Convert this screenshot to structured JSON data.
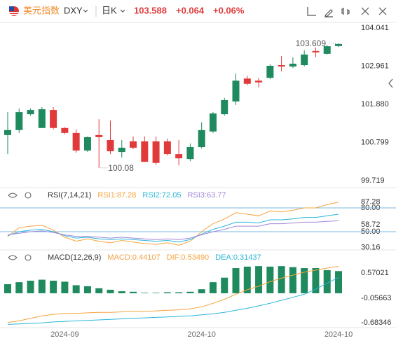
{
  "header": {
    "symbol_name": "美元指数",
    "symbol": "DXY",
    "period": "日K",
    "change": "+0.064",
    "change_pct": "+0.06%"
  },
  "chart_data": [
    {
      "type": "candlestick",
      "up_color": "#1e8a5e",
      "down_color": "#e03a3a",
      "show_extremes": true,
      "categories": [
        null,
        null,
        null,
        null,
        null,
        "2024-09",
        null,
        null,
        null,
        null,
        null,
        null,
        null,
        null,
        null,
        null,
        null,
        "2024-10",
        null,
        null,
        null,
        null,
        null,
        null,
        null,
        null,
        null,
        null,
        null,
        "2024-10"
      ],
      "open": [
        101.01,
        101.15,
        101.6,
        101.21,
        101.72,
        101.21,
        101.07,
        100.57,
        101.01,
        100.87,
        100.53,
        100.83,
        100.83,
        100.83,
        100.83,
        100.47,
        100.33,
        100.67,
        101.11,
        101.6,
        101.96,
        102.61,
        102.55,
        102.63,
        102.99,
        102.95,
        102.99,
        103.39,
        103.31,
        103.53
      ],
      "high": [
        101.66,
        101.76,
        101.76,
        101.8,
        101.8,
        101.23,
        101.17,
        100.97,
        101.46,
        101.42,
        100.87,
        100.97,
        100.97,
        100.97,
        100.91,
        100.87,
        100.77,
        101.37,
        101.66,
        102.06,
        102.75,
        102.69,
        102.63,
        103.01,
        103.25,
        103.21,
        103.41,
        103.49,
        103.56,
        103.609
      ],
      "low": [
        100.47,
        101.07,
        101.56,
        101.21,
        101.17,
        101.03,
        100.51,
        100.53,
        100.08,
        100.47,
        100.37,
        100.61,
        100.25,
        100.16,
        100.43,
        100.151,
        100.27,
        100.63,
        101.07,
        101.56,
        101.86,
        102.42,
        102.36,
        102.59,
        102.81,
        102.91,
        102.95,
        103.21,
        103.29,
        103.5
      ],
      "close": [
        101.15,
        101.66,
        101.72,
        101.74,
        101.21,
        101.07,
        100.57,
        100.95,
        100.95,
        100.55,
        100.65,
        100.65,
        100.25,
        100.22,
        100.47,
        100.35,
        100.67,
        101.15,
        101.62,
        102.0,
        102.55,
        102.46,
        102.5,
        102.97,
        102.95,
        103.03,
        103.29,
        103.35,
        103.524,
        103.588
      ],
      "ylim": [
        99.719,
        104.041
      ],
      "yticks": [
        99.719,
        100.799,
        {
          "value": 101.88,
          "label": "101.880"
        },
        102.961,
        104.041
      ]
    },
    {
      "type": "line",
      "title": "RSI(7,14,21)",
      "series": [
        {
          "name": "RSI1:87.28",
          "color": "#f5a43c",
          "values": [
            44,
            55,
            57,
            58,
            52,
            43,
            38,
            41,
            38,
            36,
            39,
            37,
            35,
            34,
            36,
            33,
            38,
            50,
            60,
            66,
            74,
            72,
            70,
            76,
            75,
            77,
            80,
            80,
            84,
            87.28
          ]
        },
        {
          "name": "RSI2:72.05",
          "color": "#29b6d9",
          "values": [
            45,
            50,
            52,
            53,
            50,
            45,
            42,
            43,
            41,
            40,
            41,
            40,
            39,
            38,
            39,
            37,
            40,
            47,
            53,
            57,
            62,
            62,
            61,
            65,
            65,
            66,
            68,
            68,
            70,
            72.05
          ]
        },
        {
          "name": "RSI3:63.77",
          "color": "#a285d8",
          "values": [
            46,
            48,
            50,
            51,
            49,
            46,
            44,
            44,
            43,
            42,
            43,
            42,
            41,
            40,
            41,
            40,
            42,
            46,
            50,
            53,
            57,
            57,
            57,
            60,
            60,
            61,
            62,
            62,
            63,
            63.77
          ]
        }
      ],
      "ylim": [
        30.16,
        87.28
      ],
      "yticks": [
        30.16,
        {
          "value": 50,
          "label": "50.00",
          "line": true
        },
        58.72,
        {
          "value": 80,
          "label": "80.00",
          "line": true
        },
        87.28
      ]
    },
    {
      "type": "macd",
      "title": "MACD(12,26,9)",
      "series": [
        {
          "name": "MACD:0.44107",
          "type": "bar",
          "color": "#1e8a5e",
          "legend_color": "#f0a24a",
          "values": [
            0.18,
            0.22,
            0.25,
            0.27,
            0.25,
            0.23,
            0.16,
            0.14,
            0.1,
            0.07,
            0.04,
            0.03,
            0.01,
            0.01,
            0.02,
            0.02,
            0.03,
            0.08,
            0.22,
            0.31,
            0.5,
            0.53,
            0.54,
            0.53,
            0.54,
            0.52,
            0.5,
            0.5,
            0.46,
            0.44107
          ]
        },
        {
          "name": "DIF:0.53490",
          "type": "line",
          "color": "#f5a43c",
          "values": [
            -0.58,
            -0.55,
            -0.5,
            -0.45,
            -0.42,
            -0.4,
            -0.4,
            -0.39,
            -0.38,
            -0.38,
            -0.37,
            -0.36,
            -0.36,
            -0.35,
            -0.34,
            -0.33,
            -0.31,
            -0.27,
            -0.2,
            -0.12,
            -0.02,
            0.07,
            0.14,
            0.23,
            0.3,
            0.36,
            0.42,
            0.46,
            0.5,
            0.5349
          ]
        },
        {
          "name": "DEA:0.31437",
          "type": "line",
          "color": "#29b6d9",
          "values": [
            -0.62,
            -0.61,
            -0.6,
            -0.59,
            -0.57,
            -0.56,
            -0.55,
            -0.54,
            -0.53,
            -0.52,
            -0.51,
            -0.5,
            -0.49,
            -0.48,
            -0.47,
            -0.46,
            -0.45,
            -0.43,
            -0.41,
            -0.38,
            -0.34,
            -0.3,
            -0.25,
            -0.2,
            -0.14,
            -0.08,
            -0.02,
            0.08,
            0.2,
            0.31437
          ]
        }
      ],
      "ylim": [
        -0.68346,
        0.57021
      ],
      "yticks": [
        -0.68346,
        -0.05663,
        0.57021
      ]
    }
  ]
}
